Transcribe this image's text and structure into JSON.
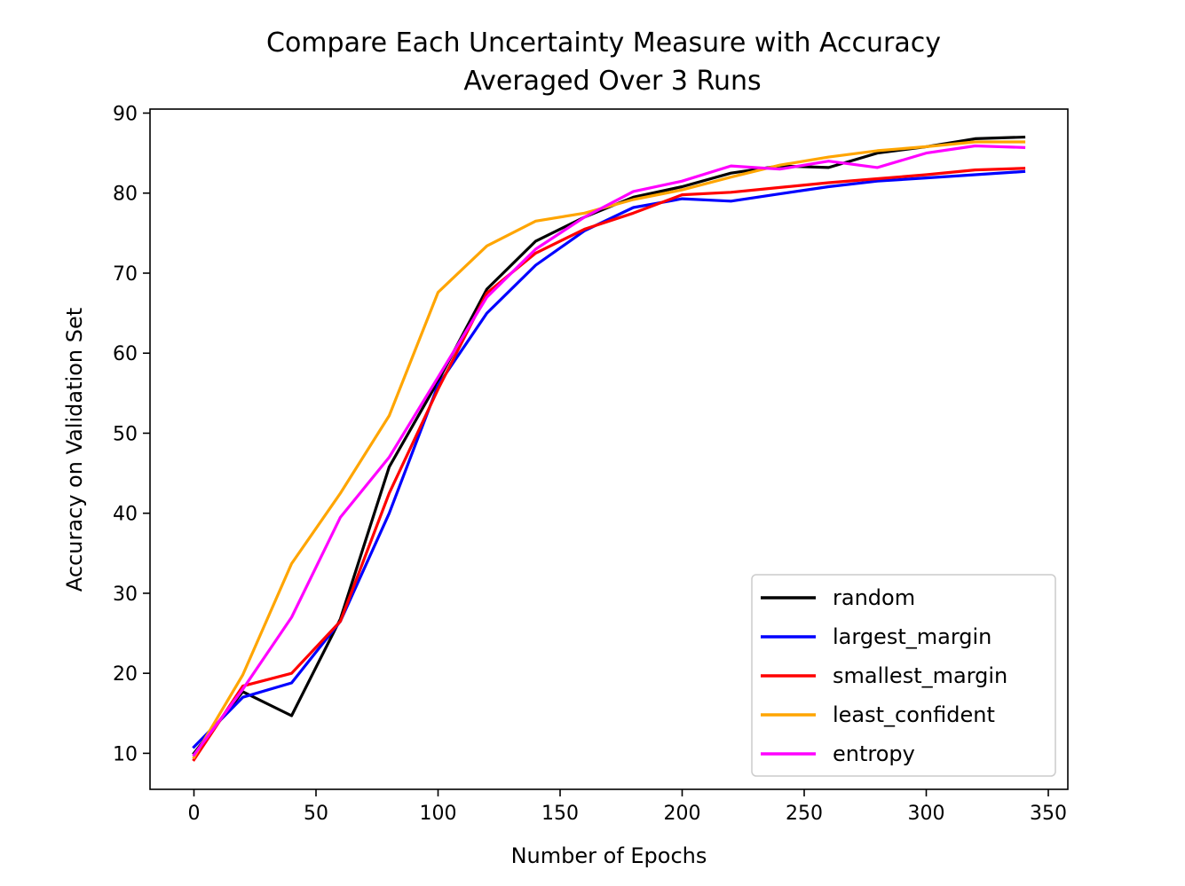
{
  "chart_data": {
    "type": "line",
    "title": "Compare Each Uncertainty Measure with Accuracy",
    "subtitle": "Averaged Over 3 Runs",
    "xlabel": "Number of Epochs",
    "ylabel": "Accuracy on Validation Set",
    "xlim": [
      -18,
      358
    ],
    "ylim": [
      5.5,
      90.5
    ],
    "xticks": [
      0,
      50,
      100,
      150,
      200,
      250,
      300,
      350
    ],
    "yticks": [
      10,
      20,
      30,
      40,
      50,
      60,
      70,
      80,
      90
    ],
    "grid": false,
    "legend_position": "lower-right",
    "x": [
      0,
      20,
      40,
      60,
      80,
      100,
      120,
      140,
      160,
      180,
      200,
      220,
      240,
      260,
      280,
      300,
      320,
      340
    ],
    "series": [
      {
        "name": "random",
        "color": "#000000",
        "values": [
          10.0,
          17.7,
          14.7,
          26.8,
          45.8,
          56.5,
          68.0,
          74.0,
          77.0,
          79.5,
          80.8,
          82.5,
          83.4,
          83.2,
          85.0,
          85.8,
          86.8,
          87.0
        ]
      },
      {
        "name": "largest_margin",
        "color": "#0000ff",
        "values": [
          10.8,
          17.0,
          18.8,
          26.5,
          40.0,
          56.0,
          65.0,
          71.0,
          75.3,
          78.2,
          79.3,
          79.0,
          79.9,
          80.8,
          81.5,
          81.9,
          82.3,
          82.7
        ]
      },
      {
        "name": "smallest_margin",
        "color": "#ff0000",
        "values": [
          9.2,
          18.4,
          20.0,
          26.5,
          42.5,
          55.5,
          67.5,
          72.5,
          75.5,
          77.5,
          79.8,
          80.1,
          80.7,
          81.3,
          81.8,
          82.3,
          82.9,
          83.1
        ]
      },
      {
        "name": "least_confident",
        "color": "#ffa500",
        "values": [
          9.5,
          19.8,
          33.7,
          42.5,
          52.2,
          67.6,
          73.4,
          76.5,
          77.5,
          79.2,
          80.4,
          82.0,
          83.5,
          84.5,
          85.3,
          85.8,
          86.4,
          86.4
        ]
      },
      {
        "name": "entropy",
        "color": "#ff00ff",
        "values": [
          9.8,
          18.0,
          27.0,
          39.5,
          47.0,
          57.0,
          67.0,
          73.0,
          77.0,
          80.2,
          81.5,
          83.4,
          83.0,
          84.0,
          83.2,
          85.0,
          85.9,
          85.7
        ]
      }
    ]
  }
}
